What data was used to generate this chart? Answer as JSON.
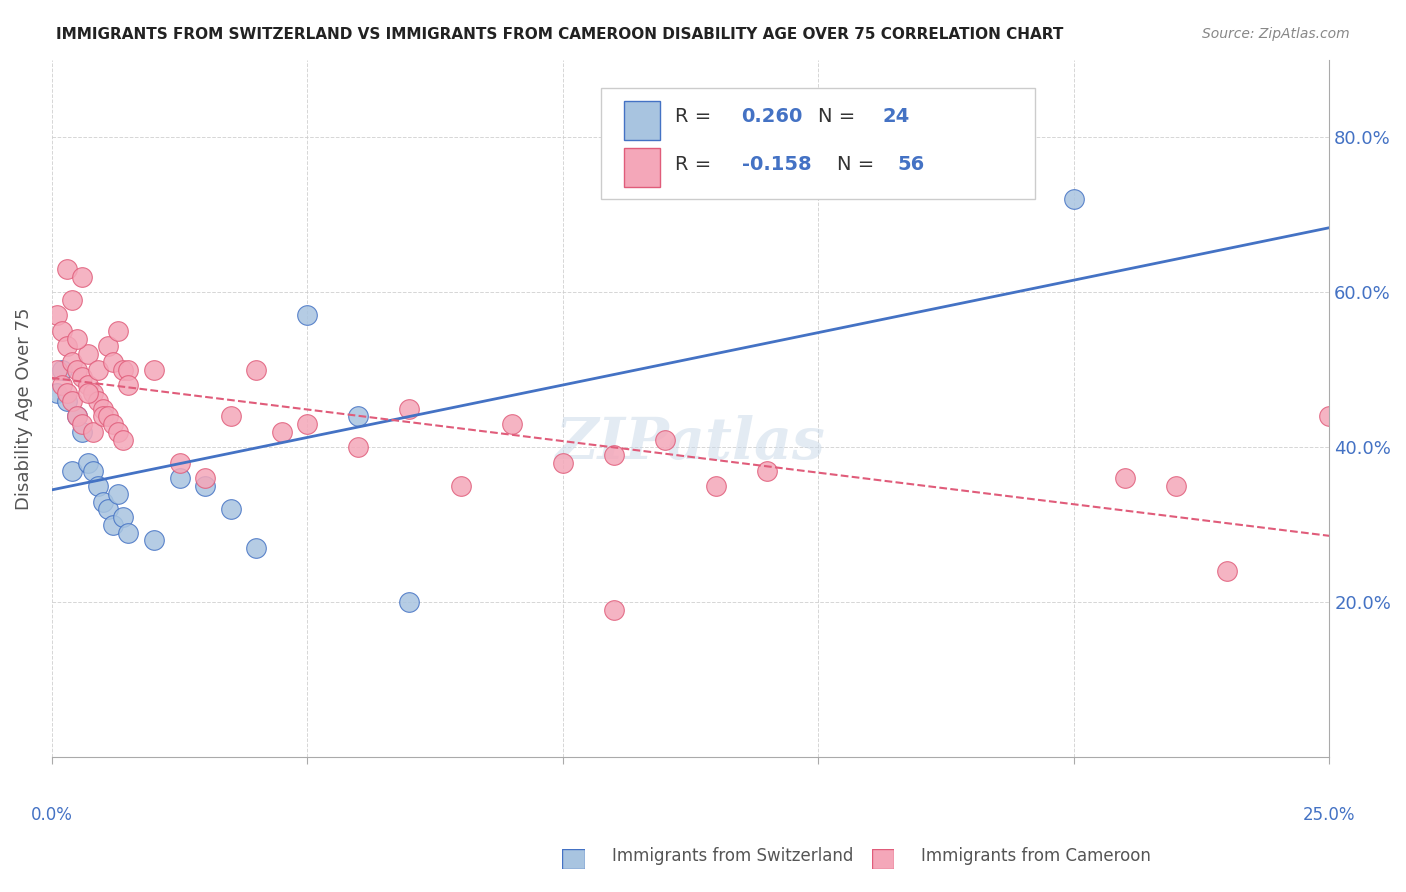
{
  "title": "IMMIGRANTS FROM SWITZERLAND VS IMMIGRANTS FROM CAMEROON DISABILITY AGE OVER 75 CORRELATION CHART",
  "source": "Source: ZipAtlas.com",
  "ylabel": "Disability Age Over 75",
  "xlim": [
    0.0,
    0.25
  ],
  "ylim": [
    0.0,
    0.9
  ],
  "yticks": [
    0.2,
    0.4,
    0.6,
    0.8
  ],
  "ytick_labels": [
    "20.0%",
    "40.0%",
    "60.0%",
    "80.0%"
  ],
  "legend1_R": "0.260",
  "legend1_N": "24",
  "legend2_R": "-0.158",
  "legend2_N": "56",
  "color_swiss": "#a8c4e0",
  "color_cameroon": "#f4a7b9",
  "line_swiss": "#4472c4",
  "line_cameroon": "#e05c7a",
  "swiss_x": [
    0.001,
    0.002,
    0.003,
    0.004,
    0.005,
    0.006,
    0.007,
    0.008,
    0.009,
    0.01,
    0.011,
    0.012,
    0.013,
    0.014,
    0.015,
    0.02,
    0.025,
    0.03,
    0.035,
    0.04,
    0.05,
    0.06,
    0.07,
    0.2
  ],
  "swiss_y": [
    0.47,
    0.5,
    0.46,
    0.37,
    0.44,
    0.42,
    0.38,
    0.37,
    0.35,
    0.33,
    0.32,
    0.3,
    0.34,
    0.31,
    0.29,
    0.28,
    0.36,
    0.35,
    0.32,
    0.27,
    0.57,
    0.44,
    0.2,
    0.72
  ],
  "cameroon_x": [
    0.001,
    0.001,
    0.002,
    0.002,
    0.003,
    0.003,
    0.004,
    0.004,
    0.005,
    0.005,
    0.006,
    0.006,
    0.007,
    0.007,
    0.008,
    0.008,
    0.009,
    0.009,
    0.01,
    0.01,
    0.011,
    0.011,
    0.012,
    0.012,
    0.013,
    0.013,
    0.014,
    0.014,
    0.015,
    0.015,
    0.02,
    0.025,
    0.03,
    0.035,
    0.04,
    0.045,
    0.05,
    0.06,
    0.07,
    0.08,
    0.09,
    0.1,
    0.11,
    0.12,
    0.13,
    0.14,
    0.11,
    0.21,
    0.22,
    0.23,
    0.003,
    0.004,
    0.005,
    0.006,
    0.007,
    0.25
  ],
  "cameroon_y": [
    0.57,
    0.5,
    0.55,
    0.48,
    0.53,
    0.47,
    0.51,
    0.46,
    0.5,
    0.44,
    0.49,
    0.43,
    0.48,
    0.52,
    0.47,
    0.42,
    0.46,
    0.5,
    0.45,
    0.44,
    0.44,
    0.53,
    0.43,
    0.51,
    0.42,
    0.55,
    0.41,
    0.5,
    0.5,
    0.48,
    0.5,
    0.38,
    0.36,
    0.44,
    0.5,
    0.42,
    0.43,
    0.4,
    0.45,
    0.35,
    0.43,
    0.38,
    0.39,
    0.41,
    0.35,
    0.37,
    0.19,
    0.36,
    0.35,
    0.24,
    0.63,
    0.59,
    0.54,
    0.62,
    0.47,
    0.44
  ],
  "watermark": "ZIPatlas",
  "background_color": "#ffffff"
}
